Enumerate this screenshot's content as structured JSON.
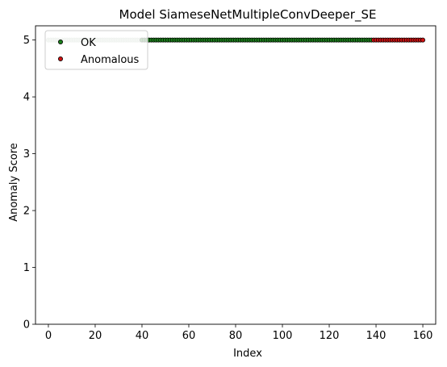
{
  "chart_data": {
    "type": "scatter",
    "title": "Model SiameseNetMultipleConvDeeper_SE",
    "xlabel": "Index",
    "ylabel": "Anomaly Score",
    "xlim": [
      -5.5,
      165.5
    ],
    "ylim": [
      0,
      5.25
    ],
    "xticks": [
      0,
      20,
      40,
      60,
      80,
      100,
      120,
      140,
      160
    ],
    "yticks": [
      0,
      1,
      2,
      3,
      4,
      5
    ],
    "grid": false,
    "legend_position": "top-left",
    "series": [
      {
        "name": "OK",
        "color": "#1a7f1a",
        "x_range": [
          0,
          138
        ],
        "y": 5,
        "faded_until": 40
      },
      {
        "name": "Anomalous",
        "color": "#cc1111",
        "x_range": [
          139,
          160
        ],
        "y": 5
      }
    ],
    "legend": [
      "OK",
      "Anomalous"
    ]
  }
}
